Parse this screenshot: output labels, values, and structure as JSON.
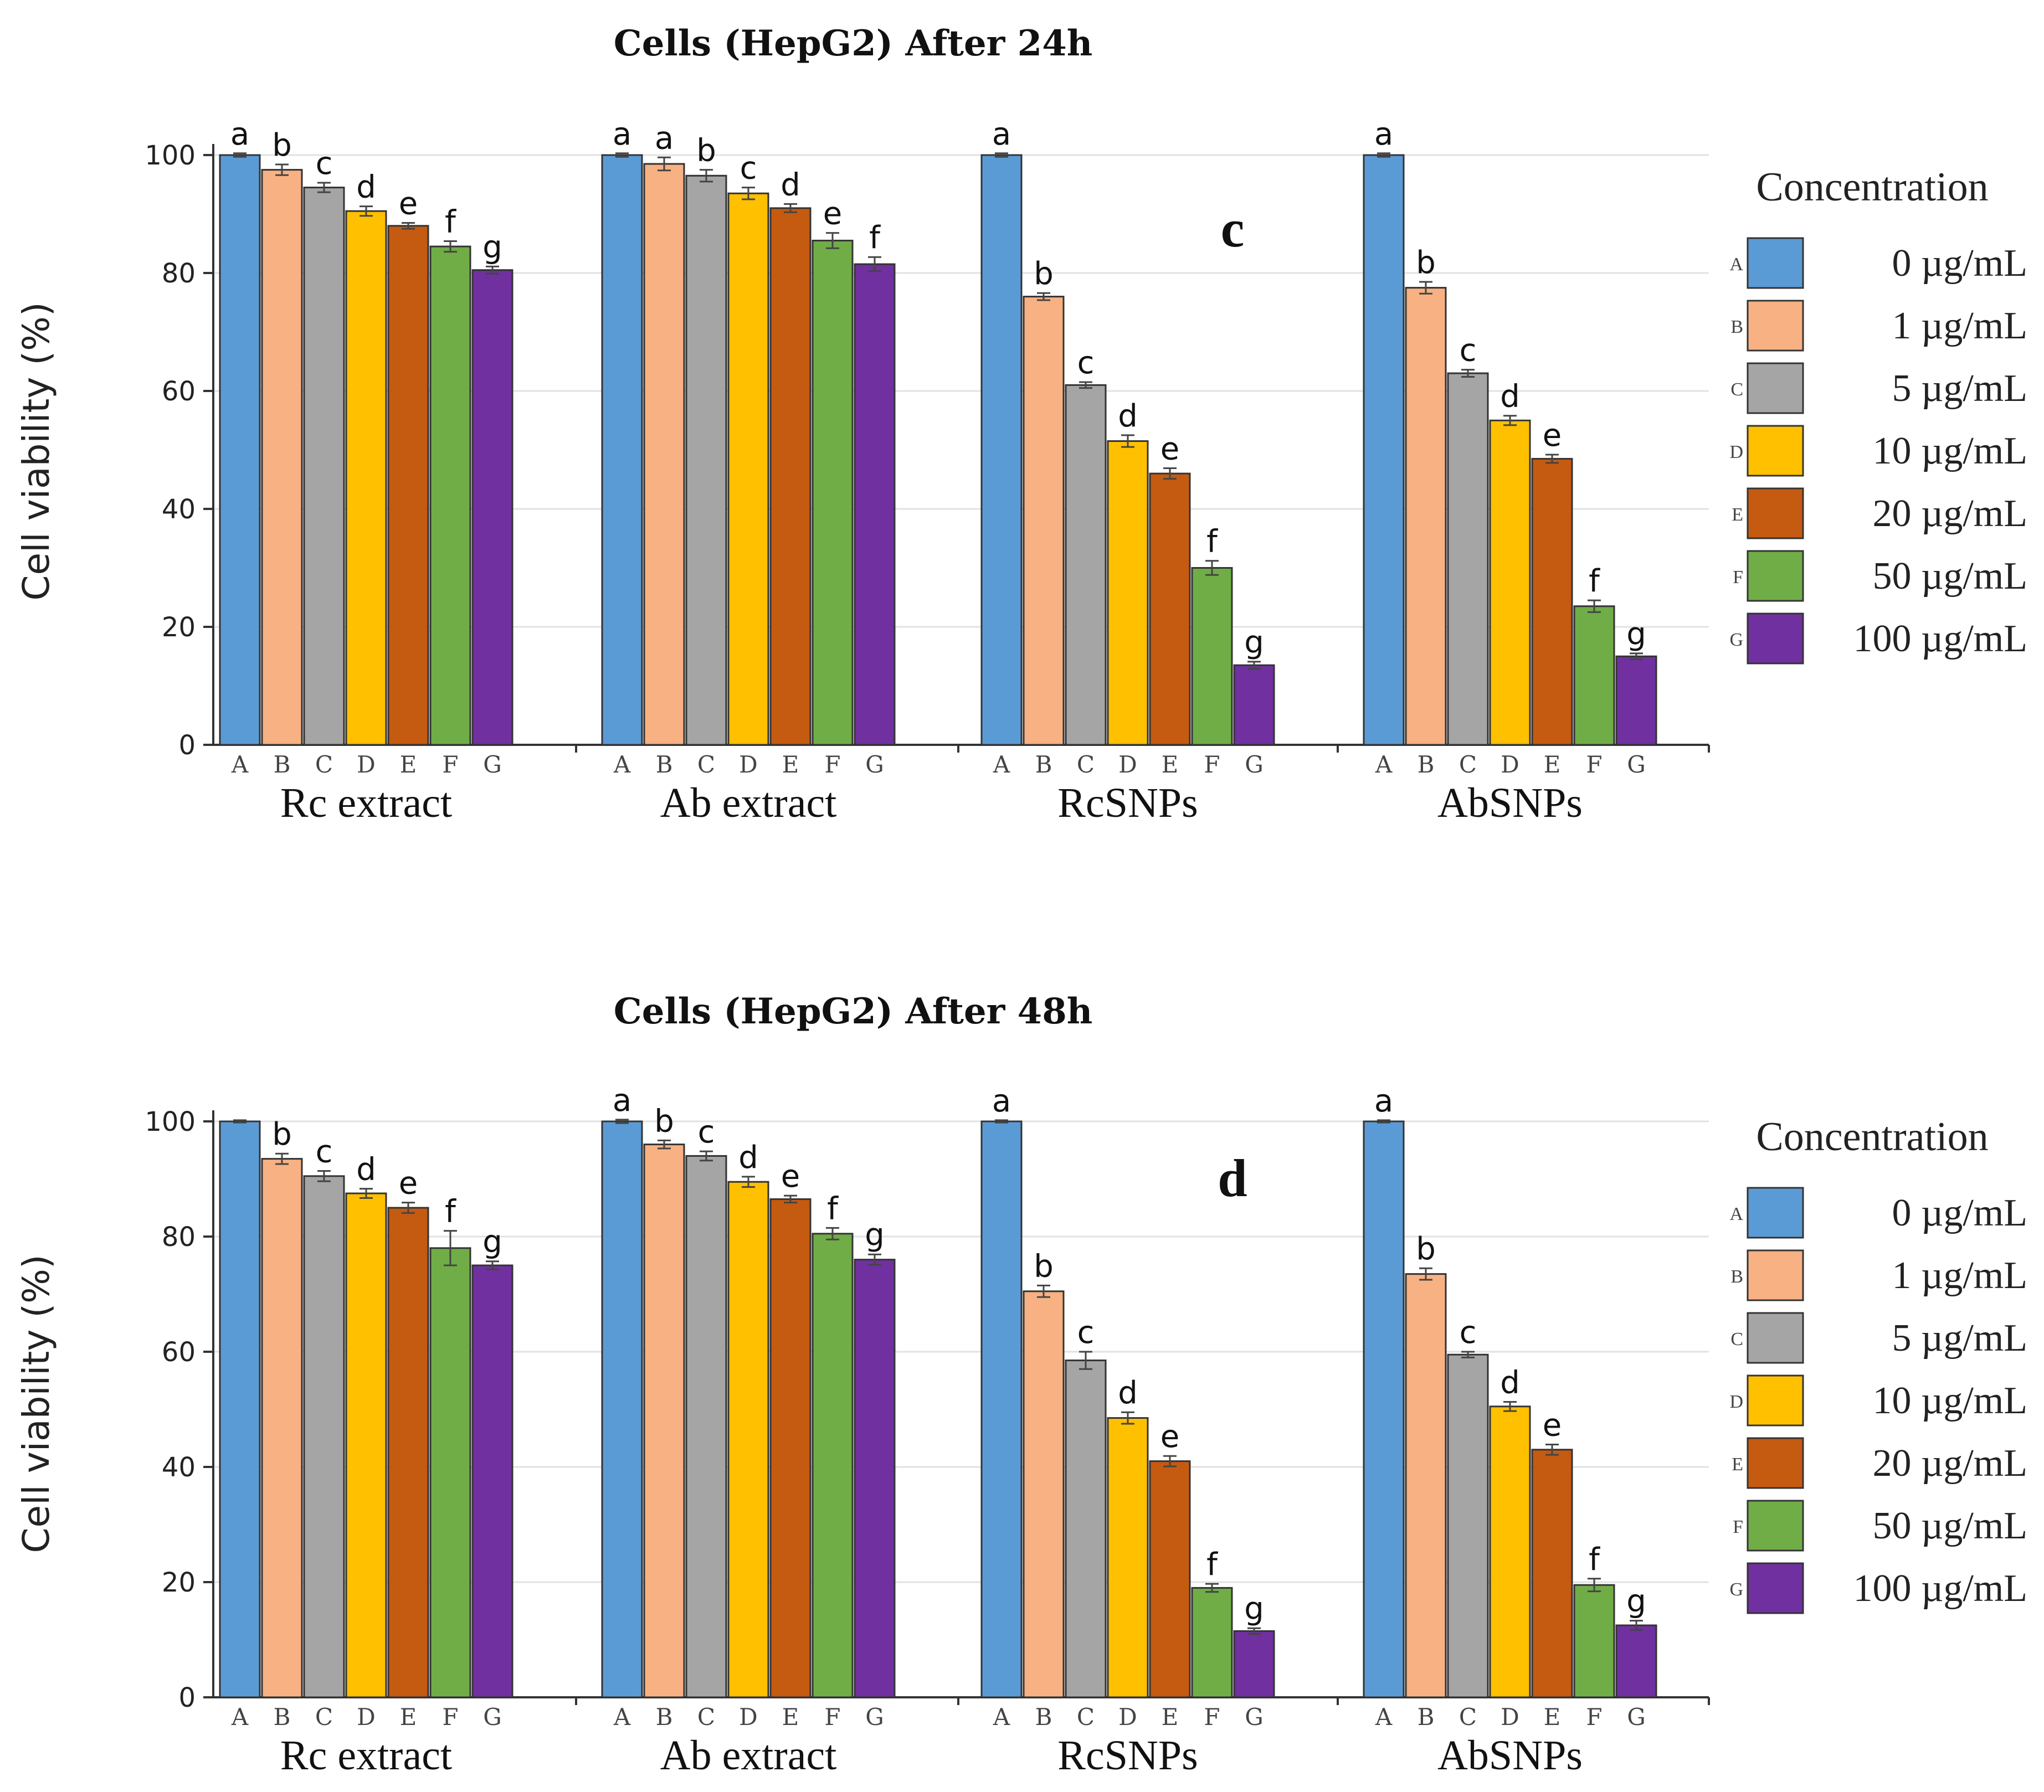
{
  "legend": {
    "title": "Concentration",
    "entries": [
      {
        "key": "A",
        "label": "0 µg/mL",
        "color": "#5b9bd5"
      },
      {
        "key": "B",
        "label": "1 µg/mL",
        "color": "#f8b183"
      },
      {
        "key": "C",
        "label": "5 µg/mL",
        "color": "#a5a5a5"
      },
      {
        "key": "D",
        "label": "10 µg/mL",
        "color": "#ffc000"
      },
      {
        "key": "E",
        "label": "20 µg/mL",
        "color": "#c55a11"
      },
      {
        "key": "F",
        "label": "50 µg/mL",
        "color": "#70ad47"
      },
      {
        "key": "G",
        "label": "100 µg/mL",
        "color": "#7030a0"
      }
    ]
  },
  "chart_data": [
    {
      "type": "bar",
      "panel": "c",
      "title": "Cells (HepG2) After 24h",
      "ylabel": "Cell viability (%)",
      "xlabel": "",
      "ylim": [
        0,
        100
      ],
      "yticks": [
        0,
        20,
        40,
        60,
        80,
        100
      ],
      "bar_labels": [
        "A",
        "B",
        "C",
        "D",
        "E",
        "F",
        "G"
      ],
      "groups": [
        {
          "name": "Rc extract",
          "values": [
            100,
            97.5,
            94.5,
            90.5,
            88,
            84.5,
            80.5
          ],
          "errors": [
            0.3,
            0.9,
            0.8,
            0.8,
            0.5,
            0.9,
            0.6
          ],
          "letters": [
            "a",
            "b",
            "c",
            "d",
            "e",
            "f",
            "g"
          ]
        },
        {
          "name": "Ab extract",
          "values": [
            100,
            98.5,
            96.5,
            93.5,
            91,
            85.5,
            81.5
          ],
          "errors": [
            0.3,
            1.1,
            1.0,
            1.0,
            0.7,
            1.3,
            1.2
          ],
          "letters": [
            "a",
            "a",
            "b",
            "c",
            "d",
            "e",
            "f"
          ]
        },
        {
          "name": "RcSNPs",
          "values": [
            100,
            76,
            61,
            51.5,
            46,
            30,
            13.5
          ],
          "errors": [
            0.3,
            0.6,
            0.5,
            1.0,
            0.9,
            1.2,
            0.6
          ],
          "letters": [
            "a",
            "b",
            "c",
            "d",
            "e",
            "f",
            "g"
          ]
        },
        {
          "name": "AbSNPs",
          "values": [
            100,
            77.5,
            63,
            55,
            48.5,
            23.5,
            15
          ],
          "errors": [
            0.3,
            1.0,
            0.6,
            0.8,
            0.7,
            1.0,
            0.5
          ],
          "letters": [
            "a",
            "b",
            "c",
            "d",
            "e",
            "f",
            "g"
          ]
        }
      ]
    },
    {
      "type": "bar",
      "panel": "d",
      "title": "Cells (HepG2) After 48h",
      "ylabel": "Cell viability (%)",
      "xlabel": "",
      "ylim": [
        0,
        100
      ],
      "yticks": [
        0,
        20,
        40,
        60,
        80,
        100
      ],
      "bar_labels": [
        "A",
        "B",
        "C",
        "D",
        "E",
        "F",
        "G"
      ],
      "groups": [
        {
          "name": "Rc extract",
          "values": [
            100,
            93.5,
            90.5,
            87.5,
            85,
            78,
            75
          ],
          "errors": [
            0.2,
            0.9,
            0.9,
            0.8,
            0.9,
            3.0,
            0.7
          ],
          "letters": [
            "",
            "b",
            "c",
            "d",
            "e",
            "f",
            "g"
          ]
        },
        {
          "name": "Ab extract",
          "values": [
            100,
            96,
            94,
            89.5,
            86.5,
            80.5,
            76
          ],
          "errors": [
            0.3,
            0.7,
            0.8,
            0.9,
            0.6,
            1.0,
            0.9
          ],
          "letters": [
            "a",
            "b",
            "c",
            "d",
            "e",
            "f",
            "g"
          ]
        },
        {
          "name": "RcSNPs",
          "values": [
            100,
            70.5,
            58.5,
            48.5,
            41,
            19,
            11.5
          ],
          "errors": [
            0.2,
            1.0,
            1.5,
            1.0,
            0.9,
            0.7,
            0.5
          ],
          "letters": [
            "a",
            "b",
            "c",
            "d",
            "e",
            "f",
            "g"
          ]
        },
        {
          "name": "AbSNPs",
          "values": [
            100,
            73.5,
            59.5,
            50.5,
            43,
            19.5,
            12.5
          ],
          "errors": [
            0.2,
            1.0,
            0.5,
            0.8,
            0.9,
            1.1,
            0.8
          ],
          "letters": [
            "a",
            "b",
            "c",
            "d",
            "e",
            "f",
            "g"
          ]
        }
      ]
    }
  ]
}
